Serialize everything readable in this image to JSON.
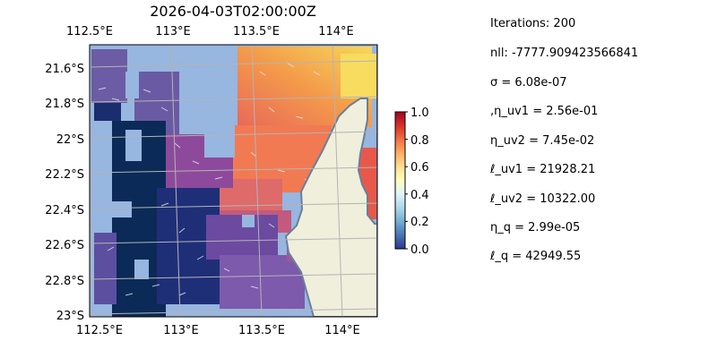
{
  "title": "2026-04-03T02:00:00Z",
  "map": {
    "lon_ticks_top": [
      "112.5°E",
      "113°E",
      "113.5°E",
      "114°E"
    ],
    "lon_ticks_bottom": [
      "112.5°E",
      "113°E",
      "113.5°E",
      "114°E"
    ],
    "lat_ticks": [
      "21.6°S",
      "21.8°S",
      "22°S",
      "22.2°S",
      "22.4°S",
      "22.6°S",
      "22.8°S",
      "23°S"
    ],
    "extent": {
      "lon_min": 112.5,
      "lon_max": 114.25,
      "lat_min": -23.0,
      "lat_max": -21.5
    },
    "colors": {
      "ocean": "#97b6e0",
      "land": "#efefdc",
      "coast": "#6a7f9a",
      "grid": "#b4b4b4"
    }
  },
  "colorbar": {
    "ticks": [
      "0.0",
      "0.2",
      "0.4",
      "0.6",
      "0.8",
      "1.0"
    ],
    "range": [
      0.0,
      1.0
    ],
    "colormap": "RdYlBu_r"
  },
  "stats": [
    "Iterations: 200",
    "nll: -7777.909423566841",
    "σ = 6.08e-07",
    ",η_uv1 = 2.56e-01",
    "η_uv2 = 7.45e-02",
    "ℓ_uv1 = 21928.21",
    "ℓ_uv2 = 10322.00",
    "η_q = 2.99e-05",
    "ℓ_q = 42949.55"
  ]
}
